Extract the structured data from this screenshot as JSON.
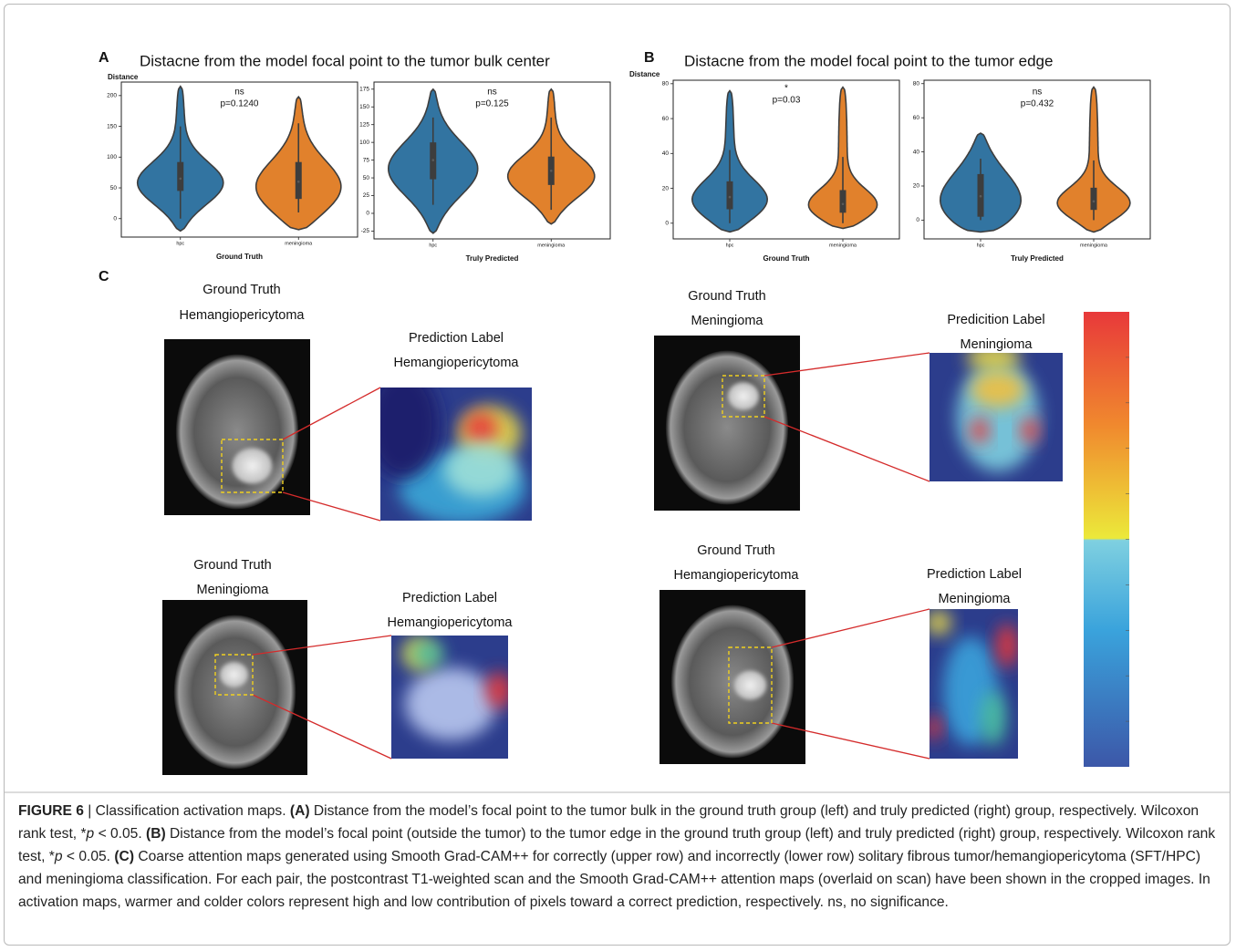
{
  "panel_a": {
    "letter": "A",
    "title": "Distacne from the model focal point to the tumor bulk center"
  },
  "panel_b": {
    "letter": "B",
    "title": "Distacne from the model focal point to the tumor edge"
  },
  "chart_data": [
    {
      "type": "violin",
      "ylabel": "Distance",
      "xlabel": "Ground Truth",
      "annotation": [
        "ns",
        "p=0.1240"
      ],
      "categories": [
        "hpc",
        "meningioma"
      ],
      "colors": [
        "#3274a1",
        "#e1812c"
      ],
      "ylim": [
        -30,
        222
      ],
      "yticks": [
        0,
        50,
        100,
        150,
        200
      ],
      "stats": [
        {
          "min": -20,
          "whisker_lo": 0,
          "q1": 45,
          "median": 65,
          "q3": 92,
          "whisker_hi": 150,
          "max": 215
        },
        {
          "min": -18,
          "whisker_lo": 10,
          "q1": 32,
          "median": 60,
          "q3": 92,
          "whisker_hi": 155,
          "max": 198
        }
      ]
    },
    {
      "type": "violin",
      "xlabel": "Truly Predicted",
      "annotation": [
        "ns",
        "p=0.125"
      ],
      "categories": [
        "hpc",
        "meningioma"
      ],
      "colors": [
        "#3274a1",
        "#e1812c"
      ],
      "ylim": [
        -36,
        185
      ],
      "yticks": [
        -25,
        0,
        25,
        50,
        75,
        100,
        125,
        150,
        175
      ],
      "stats": [
        {
          "min": -28,
          "whisker_lo": 12,
          "q1": 48,
          "median": 75,
          "q3": 100,
          "whisker_hi": 135,
          "max": 175
        },
        {
          "min": -15,
          "whisker_lo": 5,
          "q1": 40,
          "median": 60,
          "q3": 80,
          "whisker_hi": 135,
          "max": 175
        }
      ]
    },
    {
      "type": "violin",
      "ylabel": "Distance",
      "xlabel": "Ground Truth",
      "annotation": [
        "*",
        "p=0.03"
      ],
      "categories": [
        "hpc",
        "meningioma"
      ],
      "colors": [
        "#3274a1",
        "#e1812c"
      ],
      "ylim": [
        -9,
        82
      ],
      "yticks": [
        0,
        20,
        40,
        60,
        80
      ],
      "stats": [
        {
          "min": -5,
          "whisker_lo": 0,
          "q1": 8,
          "median": 15,
          "q3": 24,
          "whisker_hi": 42,
          "max": 76
        },
        {
          "min": -3,
          "whisker_lo": 0,
          "q1": 6,
          "median": 11,
          "q3": 19,
          "whisker_hi": 38,
          "max": 78
        }
      ]
    },
    {
      "type": "violin",
      "xlabel": "Truly Predicted",
      "annotation": [
        "ns",
        "p=0.432"
      ],
      "categories": [
        "hpc",
        "meningioma"
      ],
      "colors": [
        "#3274a1",
        "#e1812c"
      ],
      "ylim": [
        -11,
        82
      ],
      "yticks": [
        0,
        20,
        40,
        60,
        80
      ],
      "stats": [
        {
          "min": -7,
          "whisker_lo": 0,
          "q1": 2,
          "median": 14,
          "q3": 27,
          "whisker_hi": 36,
          "max": 51
        },
        {
          "min": -7,
          "whisker_lo": 0,
          "q1": 6,
          "median": 11,
          "q3": 19,
          "whisker_hi": 35,
          "max": 78
        }
      ]
    }
  ],
  "panel_c": {
    "letter": "C",
    "pairs": [
      {
        "scan_label": [
          "Ground Truth",
          "Hemangiopericytoma"
        ],
        "map_label": [
          "Prediction Label",
          "Hemangiopericytoma"
        ]
      },
      {
        "scan_label": [
          "Ground Truth",
          "Meningioma"
        ],
        "map_label": [
          "Predicition Label",
          "Meningioma"
        ]
      },
      {
        "scan_label": [
          "Ground Truth",
          "Meningioma"
        ],
        "map_label": [
          "Prediction Label",
          "Hemangiopericytoma"
        ]
      },
      {
        "scan_label": [
          "Ground Truth",
          "Hemangiopericytoma"
        ],
        "map_label": [
          "Prediction Label",
          "Meningioma"
        ]
      }
    ]
  },
  "caption": {
    "figure": "FIGURE 6",
    "separator": "|",
    "runs": [
      {
        "text": "Classification activation maps. ",
        "style": "plain"
      },
      {
        "text": "(A)",
        "style": "bold"
      },
      {
        "text": " Distance from the model’s focal point to the tumor bulk in the ground truth group (left) and truly predicted (right) group, respectively. Wilcoxon rank test, *",
        "style": "plain"
      },
      {
        "text": "p",
        "style": "italic"
      },
      {
        "text": " < 0.05. ",
        "style": "plain"
      },
      {
        "text": "(B)",
        "style": "bold"
      },
      {
        "text": " Distance from the model’s focal point (outside the tumor) to the tumor edge in the ground truth group (left) and truly predicted (right) group, respectively. Wilcoxon rank test, *",
        "style": "plain"
      },
      {
        "text": "p",
        "style": "italic"
      },
      {
        "text": " < 0.05. ",
        "style": "plain"
      },
      {
        "text": "(C)",
        "style": "bold"
      },
      {
        "text": " Coarse attention maps generated using Smooth Grad-CAM++ for correctly (upper row) and incorrectly (lower row) solitary fibrous tumor/hemangiopericytoma (SFT/HPC) and meningioma classification. For each pair, the postcontrast T1-weighted scan and the Smooth Grad-CAM++ attention maps (overlaid on scan) have been shown in the cropped images. In activation maps, warmer and colder colors represent high and low contribution of pixels toward a correct prediction, respectively. ns, no significance.",
        "style": "plain"
      }
    ]
  }
}
